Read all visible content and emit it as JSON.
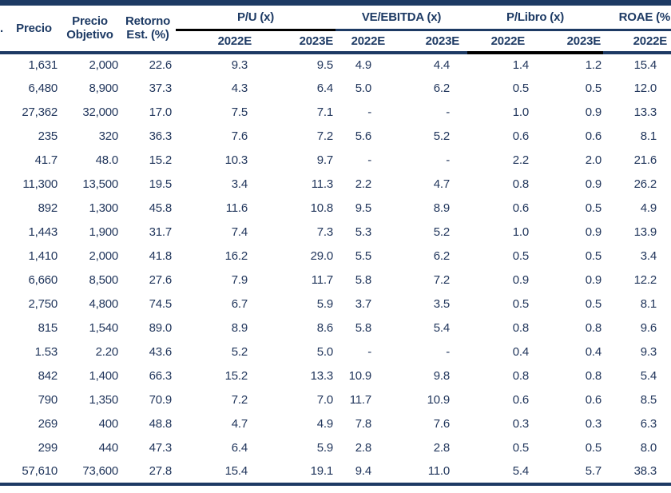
{
  "colors": {
    "navy": "#1d3a64",
    "black": "#000000",
    "background": "#ffffff"
  },
  "header": {
    "stub": ".",
    "precio": "Precio",
    "precio_objetivo": {
      "line1": "Precio",
      "line2": "Objetivo"
    },
    "retorno": {
      "line1": "Retorno",
      "line2": "Est. (%)"
    },
    "groups": [
      {
        "label": "P/U (x)",
        "cols": [
          "2022E",
          "2023E"
        ]
      },
      {
        "label": "VE/EBITDA (x)",
        "cols": [
          "2022E",
          "2023E"
        ]
      },
      {
        "label": "P/Libro (x)",
        "cols": [
          "2022E",
          "2023E"
        ]
      },
      {
        "label": "ROAE (%",
        "cols": [
          "2022E"
        ]
      }
    ]
  },
  "table": {
    "columns": [
      "Precio",
      "Precio Objetivo",
      "Retorno Est. (%)",
      "P/U 2022E",
      "P/U 2023E",
      "VE/EBITDA 2022E",
      "VE/EBITDA 2023E",
      "P/Libro 2022E",
      "P/Libro 2023E",
      "ROAE 2022E"
    ],
    "rows": [
      [
        "1,631",
        "2,000",
        "22.6",
        "9.3",
        "9.5",
        "4.9",
        "4.4",
        "1.4",
        "1.2",
        "15.4"
      ],
      [
        "6,480",
        "8,900",
        "37.3",
        "4.3",
        "6.4",
        "5.0",
        "6.2",
        "0.5",
        "0.5",
        "12.0"
      ],
      [
        "27,362",
        "32,000",
        "17.0",
        "7.5",
        "7.1",
        "-",
        "-",
        "1.0",
        "0.9",
        "13.3"
      ],
      [
        "235",
        "320",
        "36.3",
        "7.6",
        "7.2",
        "5.6",
        "5.2",
        "0.6",
        "0.6",
        "8.1"
      ],
      [
        "41.7",
        "48.0",
        "15.2",
        "10.3",
        "9.7",
        "-",
        "-",
        "2.2",
        "2.0",
        "21.6"
      ],
      [
        "11,300",
        "13,500",
        "19.5",
        "3.4",
        "11.3",
        "2.2",
        "4.7",
        "0.8",
        "0.9",
        "26.2"
      ],
      [
        "892",
        "1,300",
        "45.8",
        "11.6",
        "10.8",
        "9.5",
        "8.9",
        "0.6",
        "0.5",
        "4.9"
      ],
      [
        "1,443",
        "1,900",
        "31.7",
        "7.4",
        "7.3",
        "5.3",
        "5.2",
        "1.0",
        "0.9",
        "13.9"
      ],
      [
        "1,410",
        "2,000",
        "41.8",
        "16.2",
        "29.0",
        "5.5",
        "6.2",
        "0.5",
        "0.5",
        "3.4"
      ],
      [
        "6,660",
        "8,500",
        "27.6",
        "7.9",
        "11.7",
        "5.8",
        "7.2",
        "0.9",
        "0.9",
        "12.2"
      ],
      [
        "2,750",
        "4,800",
        "74.5",
        "6.7",
        "5.9",
        "3.7",
        "3.5",
        "0.5",
        "0.5",
        "8.1"
      ],
      [
        "815",
        "1,540",
        "89.0",
        "8.9",
        "8.6",
        "5.8",
        "5.4",
        "0.8",
        "0.8",
        "9.6"
      ],
      [
        "1.53",
        "2.20",
        "43.6",
        "5.2",
        "5.0",
        "-",
        "-",
        "0.4",
        "0.4",
        "9.3"
      ],
      [
        "842",
        "1,400",
        "66.3",
        "15.2",
        "13.3",
        "10.9",
        "9.8",
        "0.8",
        "0.8",
        "5.4"
      ],
      [
        "790",
        "1,350",
        "70.9",
        "7.2",
        "7.0",
        "11.7",
        "10.9",
        "0.6",
        "0.6",
        "8.5"
      ],
      [
        "269",
        "400",
        "48.8",
        "4.7",
        "4.9",
        "7.8",
        "7.6",
        "0.3",
        "0.3",
        "6.3"
      ],
      [
        "299",
        "440",
        "47.3",
        "6.4",
        "5.9",
        "2.8",
        "2.8",
        "0.5",
        "0.5",
        "8.0"
      ],
      [
        "57,610",
        "73,600",
        "27.8",
        "15.4",
        "19.1",
        "9.4",
        "11.0",
        "5.4",
        "5.7",
        "38.3"
      ]
    ]
  }
}
